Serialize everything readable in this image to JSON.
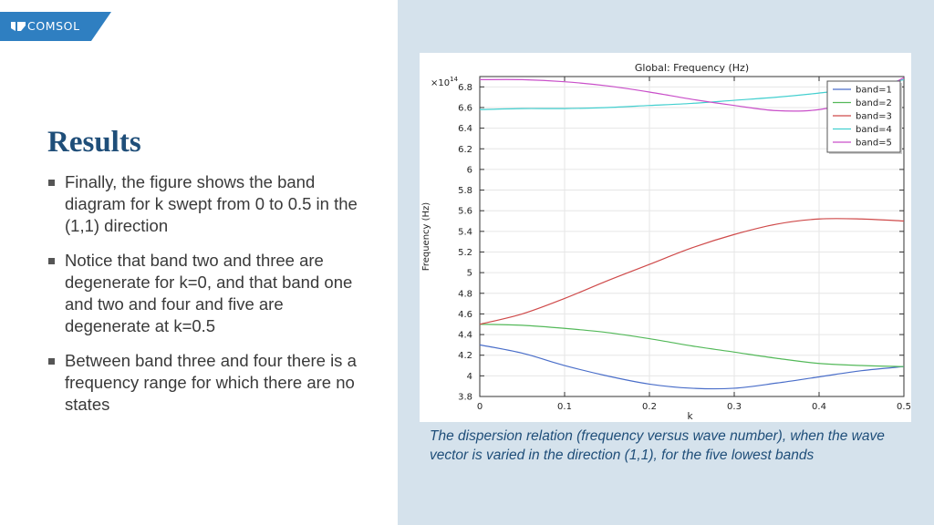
{
  "brand": {
    "name": "COMSOL",
    "tab_color": "#2f7fc1"
  },
  "slide": {
    "title": "Results",
    "bullets": [
      "Finally, the figure shows the band diagram for k swept from 0 to 0.5 in the (1,1) direction",
      "Notice that band two and three are degenerate for k=0, and that band one and two and four and five are degenerate at k=0.5",
      "Between band three and four there is a frequency range for which there are no states"
    ],
    "caption": "The dispersion relation (frequency versus wave number), when the wave vector is varied in the direction (1,1), for the five lowest bands"
  },
  "chart_data": {
    "type": "line",
    "title": "Global: Frequency (Hz)",
    "xlabel": "k",
    "ylabel": "Frequency (Hz)",
    "y_multiplier": "×10",
    "y_multiplier_exp": "14",
    "xlim": [
      0,
      0.5
    ],
    "ylim": [
      3.8,
      6.9
    ],
    "xticks": [
      0,
      0.1,
      0.2,
      0.3,
      0.4,
      0.5
    ],
    "xtick_labels": [
      "0",
      "0.1",
      "0.2",
      "0.3",
      "0.4",
      "0.5"
    ],
    "yticks": [
      3.8,
      4,
      4.2,
      4.4,
      4.6,
      4.8,
      5,
      5.2,
      5.4,
      5.6,
      5.8,
      6,
      6.2,
      6.4,
      6.6,
      6.8
    ],
    "ytick_labels": [
      "3.8",
      "4",
      "4.2",
      "4.4",
      "4.6",
      "4.8",
      "5",
      "5.2",
      "5.4",
      "5.6",
      "5.8",
      "6",
      "6.2",
      "6.4",
      "6.6",
      "6.8"
    ],
    "grid": true,
    "legend_position": "top-right",
    "x": [
      0,
      0.05,
      0.1,
      0.15,
      0.2,
      0.25,
      0.3,
      0.35,
      0.4,
      0.45,
      0.5
    ],
    "series": [
      {
        "name": "band=1",
        "color": "#4a6ec9",
        "values": [
          4.3,
          4.22,
          4.1,
          4.0,
          3.92,
          3.88,
          3.88,
          3.93,
          3.99,
          4.05,
          4.09
        ]
      },
      {
        "name": "band=2",
        "color": "#54b95a",
        "values": [
          4.5,
          4.49,
          4.46,
          4.42,
          4.36,
          4.29,
          4.23,
          4.17,
          4.12,
          4.1,
          4.09
        ]
      },
      {
        "name": "band=3",
        "color": "#cf4a4a",
        "values": [
          4.5,
          4.6,
          4.75,
          4.92,
          5.08,
          5.24,
          5.37,
          5.47,
          5.52,
          5.52,
          5.5
        ]
      },
      {
        "name": "band=4",
        "color": "#43cfcf",
        "values": [
          6.58,
          6.59,
          6.59,
          6.6,
          6.62,
          6.64,
          6.67,
          6.7,
          6.74,
          6.79,
          6.87
        ]
      },
      {
        "name": "band=5",
        "color": "#c94fc9",
        "values": [
          6.87,
          6.87,
          6.85,
          6.81,
          6.75,
          6.68,
          6.62,
          6.57,
          6.58,
          6.68,
          6.89
        ]
      }
    ]
  }
}
